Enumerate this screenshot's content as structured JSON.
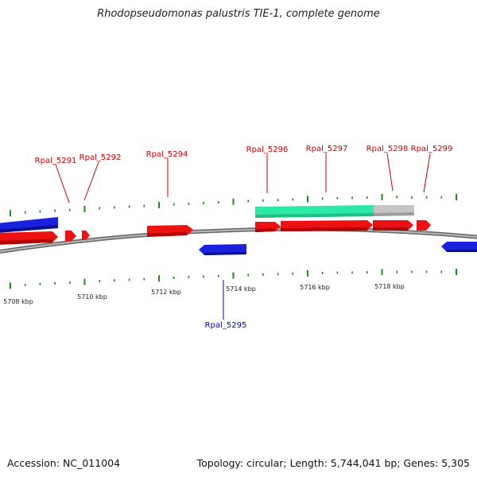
{
  "title": "Rhodopseudomonas palustris TIE-1, complete genome",
  "footer": {
    "accession": "Accession: NC_011004",
    "stats": "Topology: circular; Length: 5,744,041 bp; Genes: 5,305"
  },
  "colors": {
    "forward_gene": "#ee1111",
    "reverse_gene": "#1a22dd",
    "highlight_region": "#2ee8a8",
    "grey_region": "#bdbdbd",
    "backbone": "#888888",
    "tick": "#1f8a1f",
    "forward_label": "#cc0000",
    "reverse_label": "#0000bb"
  },
  "axis_unit": "kbp",
  "axis_labels": [
    "5708 kbp",
    "5710 kbp",
    "5712 kbp",
    "5714 kbp",
    "5716 kbp",
    "5718 kbp"
  ],
  "gene_labels_top": [
    "Rpal_5291",
    "Rpal_5292",
    "Rpal_5294",
    "Rpal_5296",
    "Rpal_5297",
    "Rpal_5298",
    "Rpal_5299"
  ],
  "gene_labels_bottom": [
    "Rpal_5295"
  ],
  "strands": [
    "forward",
    "reverse"
  ]
}
